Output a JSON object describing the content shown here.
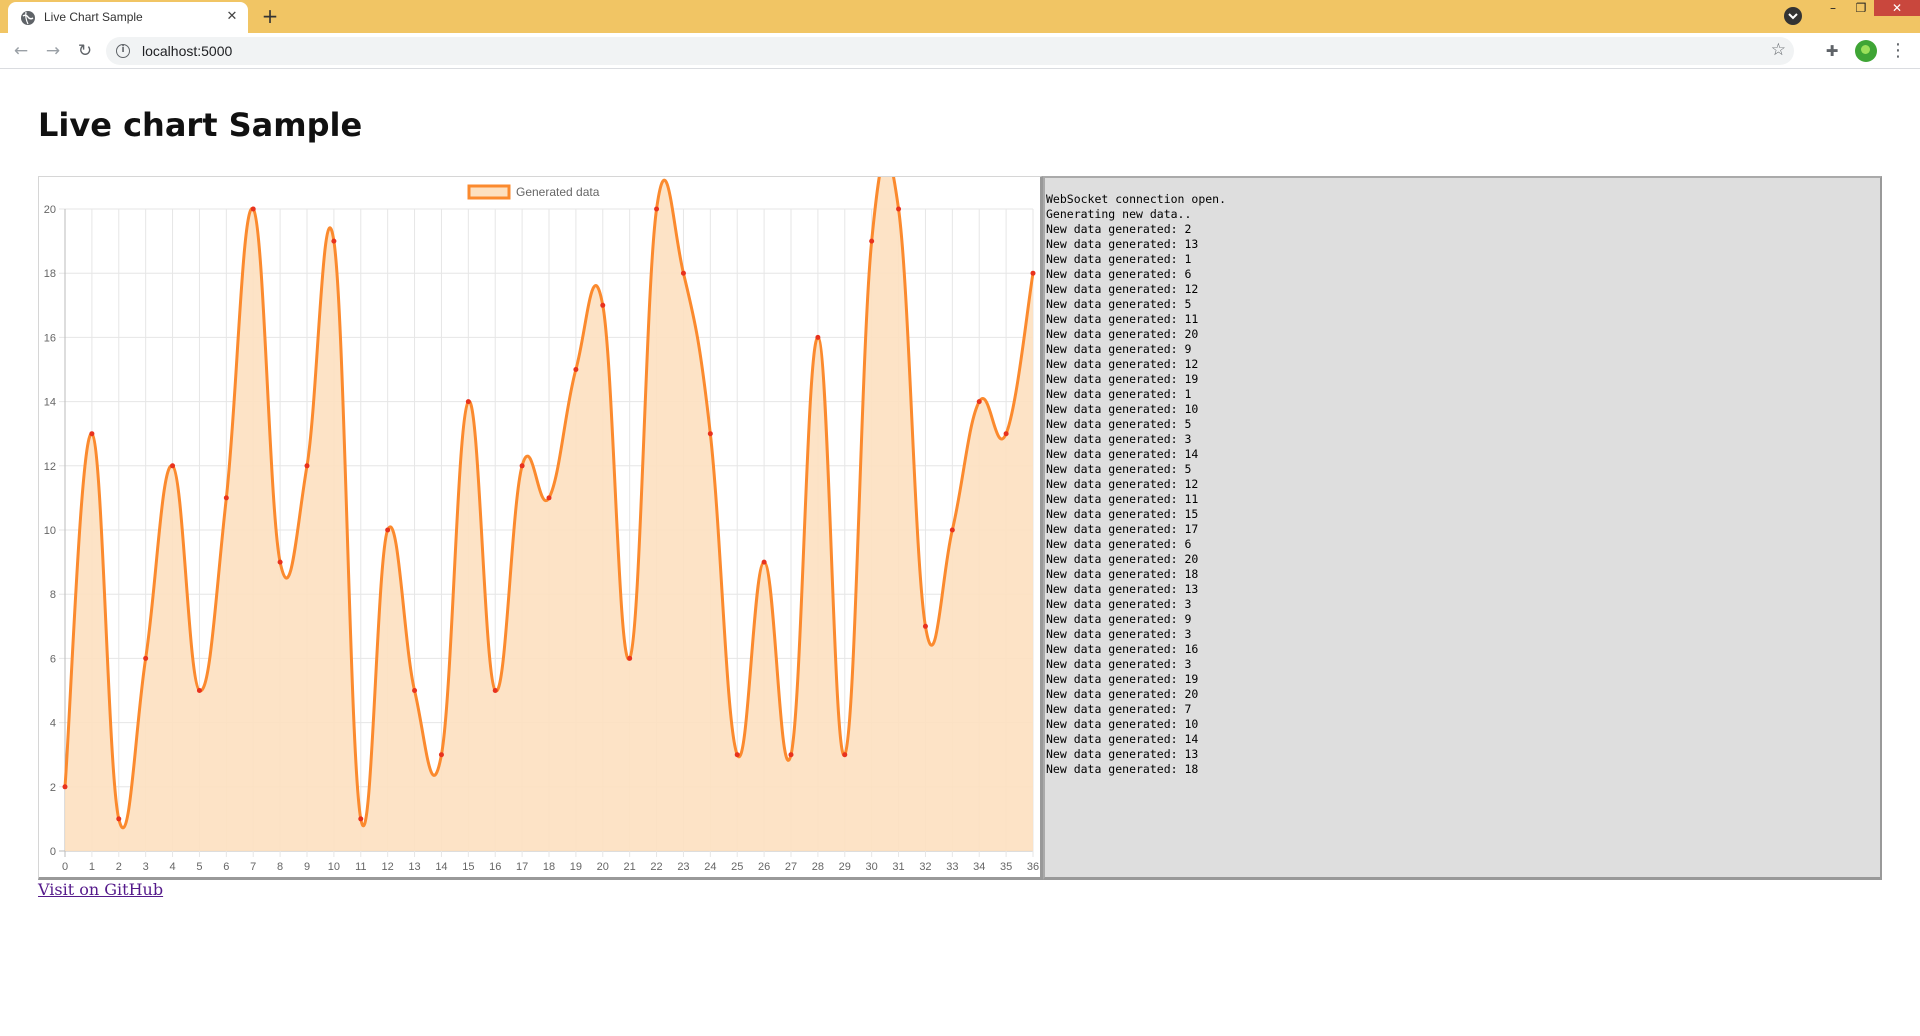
{
  "browser": {
    "tab_title": "Live Chart Sample",
    "tab_close_icon": "close-icon",
    "new_tab_icon": "plus-icon",
    "url": "localhost:5000",
    "colors": {
      "tabstrip": "#f1c564",
      "close_button": "#c9473d"
    }
  },
  "page": {
    "title": "Live chart Sample",
    "github_link": "Visit on GitHub"
  },
  "chart_data": {
    "type": "line",
    "legend": [
      "Generated data"
    ],
    "legend_position": "top",
    "categories": [
      0,
      1,
      2,
      3,
      4,
      5,
      6,
      7,
      8,
      9,
      10,
      11,
      12,
      13,
      14,
      15,
      16,
      17,
      18,
      19,
      20,
      21,
      22,
      23,
      24,
      25,
      26,
      27,
      28,
      29,
      30,
      31,
      32,
      33,
      34,
      35,
      36
    ],
    "series": [
      {
        "name": "Generated data",
        "values": [
          2,
          13,
          1,
          6,
          12,
          5,
          11,
          20,
          9,
          12,
          19,
          1,
          10,
          5,
          3,
          14,
          5,
          12,
          11,
          15,
          17,
          6,
          20,
          18,
          13,
          3,
          9,
          3,
          16,
          3,
          19,
          20,
          7,
          10,
          14,
          13,
          18
        ],
        "fill": true,
        "line_color": "#fb8a2e",
        "fill_color": "#fde0c0",
        "point_color": "#e8321e"
      }
    ],
    "ylim": [
      0,
      20
    ],
    "yticks": [
      0,
      2,
      4,
      6,
      8,
      10,
      12,
      14,
      16,
      18,
      20
    ],
    "grid": true
  },
  "log": [
    "WebSocket connection open.",
    "Generating new data..",
    "New data generated: 2",
    "New data generated: 13",
    "New data generated: 1",
    "New data generated: 6",
    "New data generated: 12",
    "New data generated: 5",
    "New data generated: 11",
    "New data generated: 20",
    "New data generated: 9",
    "New data generated: 12",
    "New data generated: 19",
    "New data generated: 1",
    "New data generated: 10",
    "New data generated: 5",
    "New data generated: 3",
    "New data generated: 14",
    "New data generated: 5",
    "New data generated: 12",
    "New data generated: 11",
    "New data generated: 15",
    "New data generated: 17",
    "New data generated: 6",
    "New data generated: 20",
    "New data generated: 18",
    "New data generated: 13",
    "New data generated: 3",
    "New data generated: 9",
    "New data generated: 3",
    "New data generated: 16",
    "New data generated: 3",
    "New data generated: 19",
    "New data generated: 20",
    "New data generated: 7",
    "New data generated: 10",
    "New data generated: 14",
    "New data generated: 13",
    "New data generated: 18"
  ]
}
